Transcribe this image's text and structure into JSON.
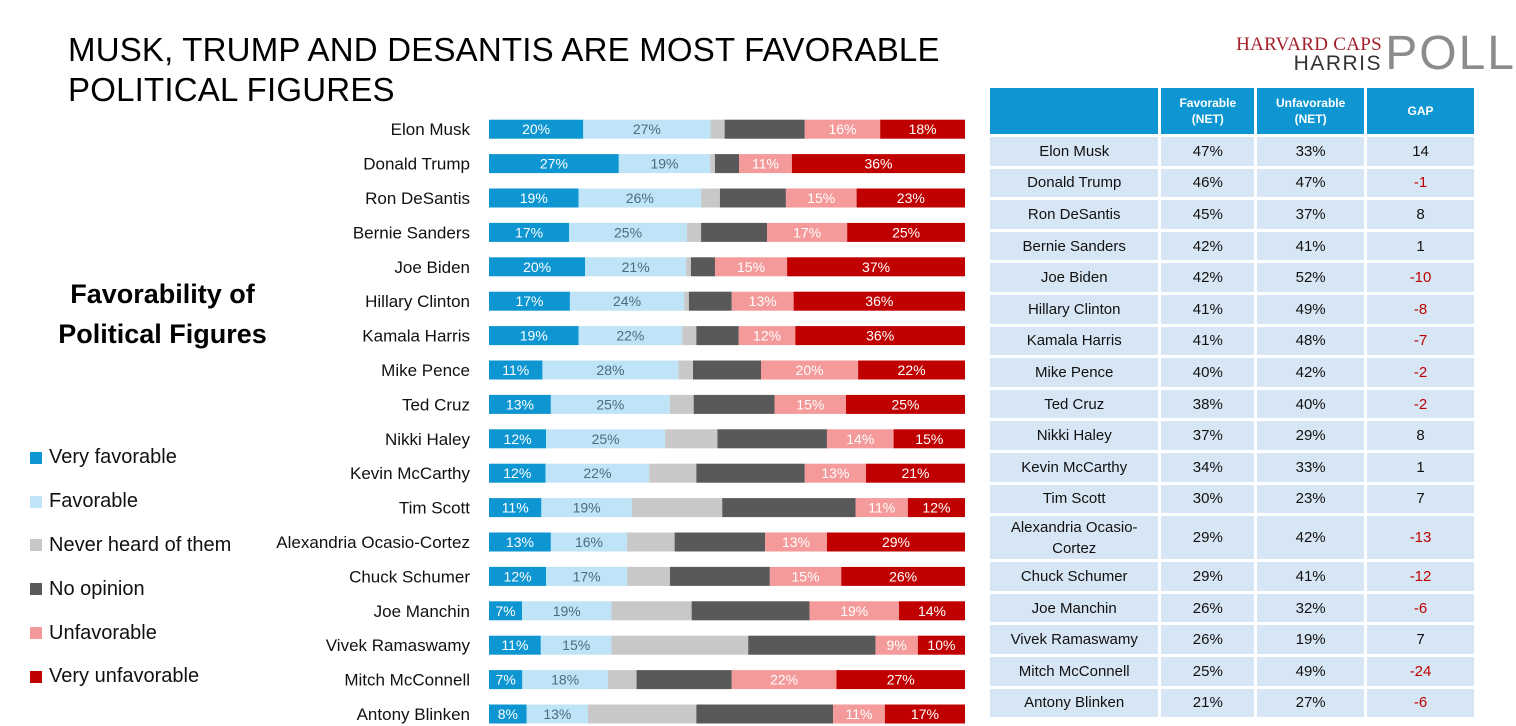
{
  "title": "MUSK, TRUMP AND DESANTIS ARE MOST FAVORABLE POLITICAL FIGURES",
  "logo": {
    "line1": "HARVARD CAPS",
    "line2": "HARRIS",
    "line3": "POLL"
  },
  "subtitle": "Favorability of Political Figures",
  "legend": [
    {
      "label": "Very favorable",
      "color": "#0d96d2"
    },
    {
      "label": "Favorable",
      "color": "#bfe4f7"
    },
    {
      "label": "Never heard of them",
      "color": "#c8c8c8"
    },
    {
      "label": "No opinion",
      "color": "#595959"
    },
    {
      "label": "Unfavorable",
      "color": "#f49a9a"
    },
    {
      "label": "Very unfavorable",
      "color": "#c00000"
    }
  ],
  "chart_data": {
    "type": "bar",
    "orientation": "horizontal",
    "stacked": true,
    "categories": [
      "Elon Musk",
      "Donald Trump",
      "Ron DeSantis",
      "Bernie Sanders",
      "Joe Biden",
      "Hillary Clinton",
      "Kamala Harris",
      "Mike Pence",
      "Ted Cruz",
      "Nikki Haley",
      "Kevin McCarthy",
      "Tim Scott",
      "Alexandria Ocasio-Cortez",
      "Chuck Schumer",
      "Joe Manchin",
      "Vivek Ramaswamy",
      "Mitch McConnell",
      "Antony Blinken"
    ],
    "series": [
      {
        "name": "Very favorable",
        "color": "#0d96d2",
        "values": [
          20,
          27,
          19,
          17,
          20,
          17,
          19,
          11,
          13,
          12,
          12,
          11,
          13,
          12,
          7,
          11,
          7,
          8
        ]
      },
      {
        "name": "Favorable",
        "color": "#bfe4f7",
        "values": [
          27,
          19,
          26,
          25,
          21,
          24,
          22,
          28,
          25,
          25,
          22,
          19,
          16,
          17,
          19,
          15,
          18,
          13
        ]
      },
      {
        "name": "Never heard of them",
        "color": "#c8c8c8",
        "values": [
          3,
          1,
          4,
          3,
          1,
          1,
          3,
          3,
          5,
          11,
          10,
          19,
          10,
          9,
          17,
          29,
          6,
          23
        ]
      },
      {
        "name": "No opinion",
        "color": "#595959",
        "values": [
          17,
          5,
          14,
          14,
          5,
          9,
          9,
          14,
          17,
          23,
          23,
          28,
          19,
          21,
          25,
          27,
          20,
          29
        ]
      },
      {
        "name": "Unfavorable",
        "color": "#f49a9a",
        "values": [
          16,
          11,
          15,
          17,
          15,
          13,
          12,
          20,
          15,
          14,
          13,
          11,
          13,
          15,
          19,
          9,
          22,
          11
        ]
      },
      {
        "name": "Very unfavorable",
        "color": "#c00000",
        "values": [
          18,
          36,
          23,
          25,
          37,
          36,
          36,
          22,
          25,
          15,
          21,
          12,
          29,
          26,
          14,
          10,
          27,
          17
        ]
      }
    ],
    "xlim": [
      0,
      100
    ],
    "labeled_series": [
      "Very favorable",
      "Favorable",
      "Unfavorable",
      "Very unfavorable"
    ],
    "label_suffix": "%"
  },
  "table": {
    "headers": [
      "",
      "Favorable\n(NET)",
      "Unfavorable\n(NET)",
      "GAP"
    ],
    "rows": [
      [
        "Elon Musk",
        "47%",
        "33%",
        "14"
      ],
      [
        "Donald Trump",
        "46%",
        "47%",
        "-1"
      ],
      [
        "Ron DeSantis",
        "45%",
        "37%",
        "8"
      ],
      [
        "Bernie Sanders",
        "42%",
        "41%",
        "1"
      ],
      [
        "Joe Biden",
        "42%",
        "52%",
        "-10"
      ],
      [
        "Hillary Clinton",
        "41%",
        "49%",
        "-8"
      ],
      [
        "Kamala Harris",
        "41%",
        "48%",
        "-7"
      ],
      [
        "Mike Pence",
        "40%",
        "42%",
        "-2"
      ],
      [
        "Ted Cruz",
        "38%",
        "40%",
        "-2"
      ],
      [
        "Nikki Haley",
        "37%",
        "29%",
        "8"
      ],
      [
        "Kevin McCarthy",
        "34%",
        "33%",
        "1"
      ],
      [
        "Tim Scott",
        "30%",
        "23%",
        "7"
      ],
      [
        "Alexandria Ocasio-Cortez",
        "29%",
        "42%",
        "-13"
      ],
      [
        "Chuck Schumer",
        "29%",
        "41%",
        "-12"
      ],
      [
        "Joe Manchin",
        "26%",
        "32%",
        "-6"
      ],
      [
        "Vivek Ramaswamy",
        "26%",
        "19%",
        "7"
      ],
      [
        "Mitch McConnell",
        "25%",
        "49%",
        "-24"
      ],
      [
        "Antony Blinken",
        "21%",
        "27%",
        "-6"
      ]
    ]
  }
}
